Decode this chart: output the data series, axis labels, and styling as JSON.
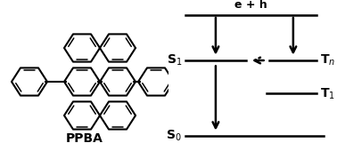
{
  "background_color": "#ffffff",
  "ppba_label": "PPBA",
  "energy_label_top": "e + h",
  "s1_label": "S$_1$",
  "s0_label": "S$_0$",
  "tn_label": "T$_n$",
  "t1_label": "T$_1$",
  "line_color": "#000000",
  "font_size_label": 9,
  "font_size_state": 10,
  "font_size_ppba": 10,
  "mol_lw": 1.5,
  "bar_lw": 1.8,
  "arrow_lw": 1.8,
  "arrow_ms": 12
}
